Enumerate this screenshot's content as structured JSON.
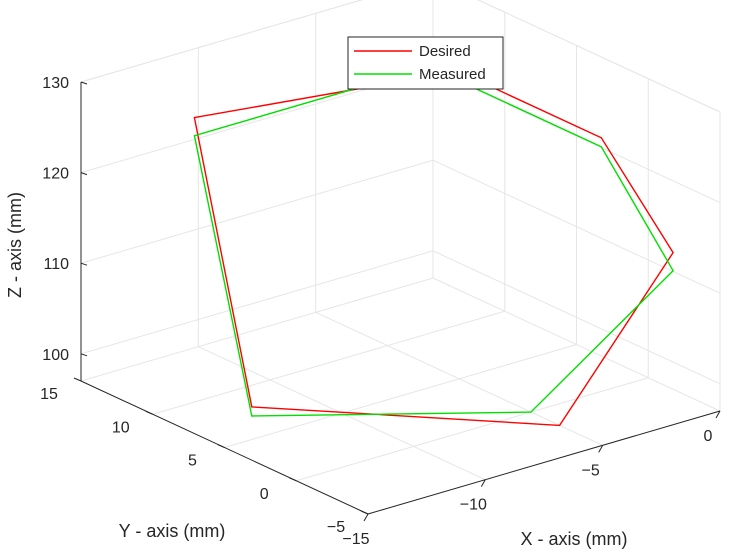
{
  "chart_data": {
    "type": "line",
    "projection": "3d",
    "xlabel": "X - axis (mm)",
    "ylabel": "Y - axis (mm)",
    "zlabel": "Z - axis (mm)",
    "xlim": [
      -15,
      0
    ],
    "ylim": [
      -5,
      15
    ],
    "zlim": [
      97,
      130
    ],
    "xticks": [
      -15,
      -10,
      -5,
      0
    ],
    "yticks": [
      -5,
      0,
      5,
      10,
      15
    ],
    "zticks": [
      100,
      110,
      120,
      130
    ],
    "xtick_labels": [
      "−15",
      "−10",
      "−5",
      "0"
    ],
    "ytick_labels": [
      "−5",
      "0",
      "5",
      "10",
      "15"
    ],
    "ztick_labels": [
      "100",
      "110",
      "120",
      "130"
    ],
    "grid": true,
    "legend_position": "top-center",
    "series": [
      {
        "name": "Desired",
        "color": "#ff0000",
        "points": [
          {
            "x": -2,
            "y": 10,
            "z": 125
          },
          {
            "x": -2,
            "y": 0,
            "z": 125
          },
          {
            "x": -2,
            "y": -5,
            "z": 116
          },
          {
            "x": -5,
            "y": -2,
            "z": 97
          },
          {
            "x": -12,
            "y": 8,
            "z": 97
          },
          {
            "x": -12,
            "y": 12,
            "z": 126
          },
          {
            "x": -2,
            "y": 10,
            "z": 125
          }
        ]
      },
      {
        "name": "Measured",
        "color": "#00e000",
        "points": [
          {
            "x": -2,
            "y": 12,
            "z": 124
          },
          {
            "x": -2,
            "y": 0,
            "z": 124
          },
          {
            "x": -2,
            "y": -5,
            "z": 114
          },
          {
            "x": -5,
            "y": 0,
            "z": 97
          },
          {
            "x": -12,
            "y": 8,
            "z": 96
          },
          {
            "x": -12,
            "y": 12,
            "z": 124
          },
          {
            "x": -2,
            "y": 12,
            "z": 124
          }
        ]
      }
    ]
  }
}
